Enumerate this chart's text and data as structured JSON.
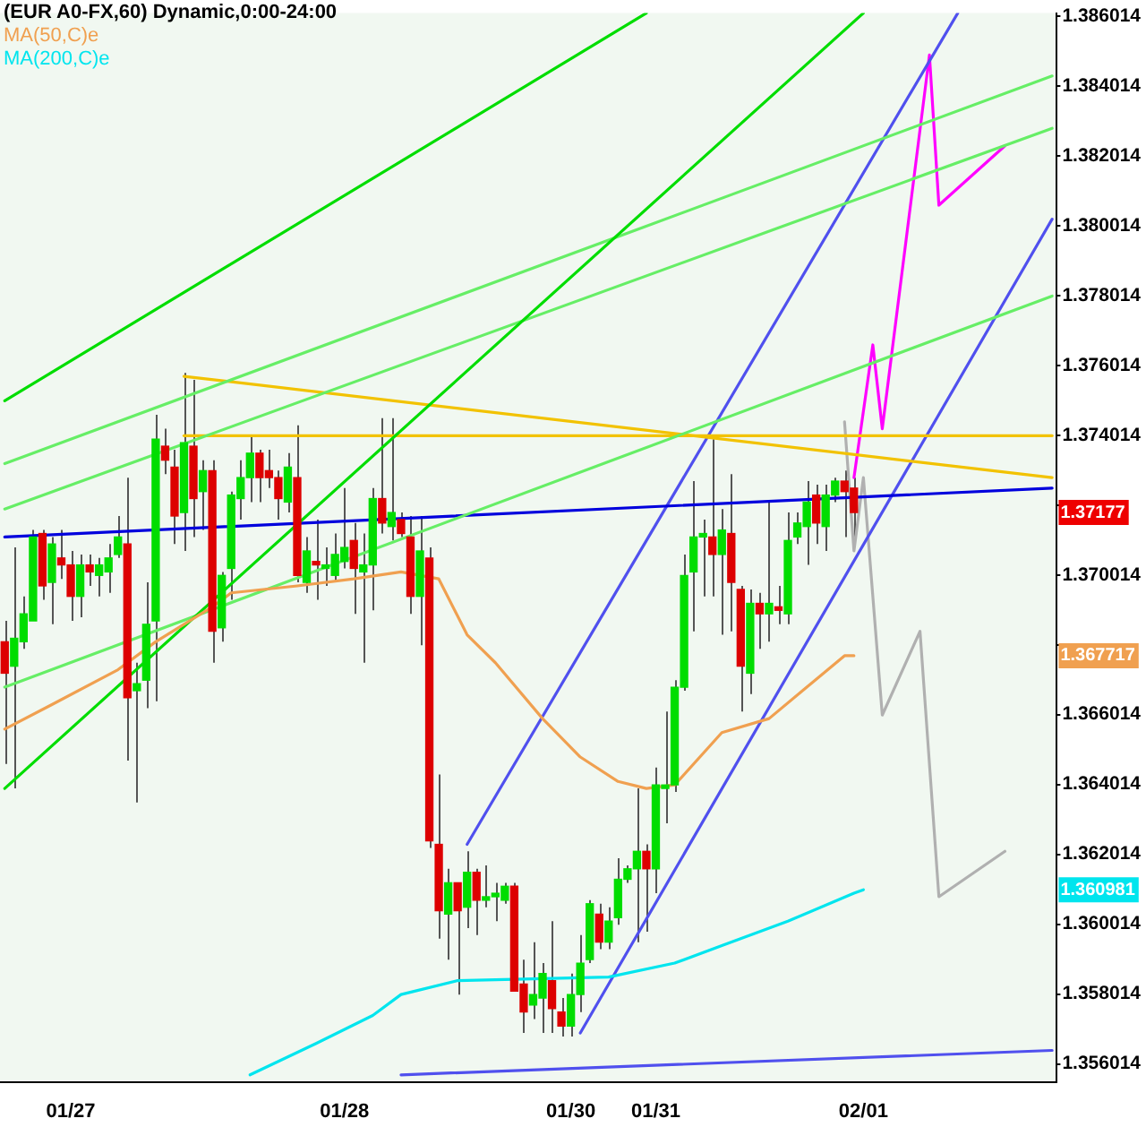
{
  "chart_data": {
    "type": "candlestick",
    "title": "(EUR A0-FX,60) Dynamic,0:00-24:00",
    "categories": [
      null,
      null,
      null,
      null,
      null,
      null,
      null,
      "01/27",
      null,
      null,
      null,
      null,
      null,
      null,
      null,
      null,
      null,
      null,
      null,
      null,
      null,
      null,
      null,
      null,
      null,
      null,
      null,
      null,
      null,
      null,
      null,
      null,
      null,
      null,
      null,
      null,
      "01/28",
      null,
      null,
      null,
      null,
      null,
      null,
      null,
      null,
      null,
      null,
      null,
      null,
      null,
      null,
      null,
      null,
      null,
      null,
      null,
      null,
      null,
      null,
      null,
      "01/30",
      null,
      null,
      null,
      null,
      null,
      null,
      null,
      null,
      "01/31",
      null,
      null,
      null,
      null,
      null,
      null,
      null,
      null,
      null,
      null,
      null,
      null,
      null,
      null,
      null,
      null,
      null,
      null,
      null,
      null,
      null,
      "02/01",
      null,
      null,
      null,
      null,
      null,
      null,
      null,
      null,
      null,
      null,
      null,
      null,
      null,
      null,
      null,
      null,
      null,
      null,
      null,
      null
    ],
    "ohlc": [
      [
        1.3681,
        1.3687,
        1.3646,
        1.3672
      ],
      [
        1.3674,
        1.3708,
        1.3639,
        1.3682
      ],
      [
        1.3681,
        1.3694,
        1.3679,
        1.3689
      ],
      [
        1.3687,
        1.3713,
        1.3687,
        1.3711
      ],
      [
        1.3712,
        1.3713,
        1.3693,
        1.3697
      ],
      [
        1.3698,
        1.3711,
        1.3686,
        1.3709
      ],
      [
        1.3705,
        1.3713,
        1.3699,
        1.3703
      ],
      [
        1.3703,
        1.3707,
        1.3687,
        1.3694
      ],
      [
        1.3694,
        1.3706,
        1.3688,
        1.3703
      ],
      [
        1.3703,
        1.3706,
        1.3697,
        1.3701
      ],
      [
        1.37,
        1.3705,
        1.3694,
        1.3703
      ],
      [
        1.3701,
        1.3709,
        1.3695,
        1.3705
      ],
      [
        1.3706,
        1.3717,
        1.3705,
        1.3711
      ],
      [
        1.3709,
        1.3728,
        1.3647,
        1.3665
      ],
      [
        1.3667,
        1.3675,
        1.3635,
        1.3669
      ],
      [
        1.367,
        1.3698,
        1.3662,
        1.3686
      ],
      [
        1.3687,
        1.3746,
        1.3664,
        1.3739
      ],
      [
        1.3737,
        1.3742,
        1.3729,
        1.3733
      ],
      [
        1.3731,
        1.3736,
        1.3709,
        1.3717
      ],
      [
        1.3718,
        1.3758,
        1.3707,
        1.3738
      ],
      [
        1.3737,
        1.3756,
        1.3711,
        1.3722
      ],
      [
        1.3724,
        1.3733,
        1.3713,
        1.373
      ],
      [
        1.373,
        1.3733,
        1.3675,
        1.3684
      ],
      [
        1.3685,
        1.3701,
        1.3681,
        1.37
      ],
      [
        1.3702,
        1.3724,
        1.3693,
        1.3723
      ],
      [
        1.3722,
        1.3733,
        1.3716,
        1.3728
      ],
      [
        1.3728,
        1.374,
        1.3721,
        1.3735
      ],
      [
        1.3735,
        1.3736,
        1.3721,
        1.3728
      ],
      [
        1.373,
        1.3736,
        1.3725,
        1.3728
      ],
      [
        1.3728,
        1.373,
        1.3716,
        1.3722
      ],
      [
        1.3721,
        1.3735,
        1.3718,
        1.3731
      ],
      [
        1.3728,
        1.3743,
        1.3698,
        1.37
      ],
      [
        1.3698,
        1.3711,
        1.3695,
        1.3707
      ],
      [
        1.3704,
        1.3716,
        1.3693,
        1.3703
      ],
      [
        1.3702,
        1.3708,
        1.3697,
        1.3703
      ],
      [
        1.37,
        1.3712,
        1.3698,
        1.3706
      ],
      [
        1.3704,
        1.3725,
        1.3702,
        1.3708
      ],
      [
        1.371,
        1.3715,
        1.3689,
        1.3702
      ],
      [
        1.3701,
        1.3712,
        1.3675,
        1.3703
      ],
      [
        1.3703,
        1.3725,
        1.369,
        1.3722
      ],
      [
        1.3722,
        1.3745,
        1.3712,
        1.3715
      ],
      [
        1.3714,
        1.3745,
        1.371,
        1.3718
      ],
      [
        1.3716,
        1.3718,
        1.3711,
        1.3712
      ],
      [
        1.3711,
        1.3717,
        1.3689,
        1.3694
      ],
      [
        1.3694,
        1.3717,
        1.368,
        1.3707
      ],
      [
        1.3705,
        1.3708,
        1.3622,
        1.3624
      ],
      [
        1.3623,
        1.3643,
        1.3596,
        1.3604
      ],
      [
        1.3603,
        1.3616,
        1.359,
        1.3612
      ],
      [
        1.3612,
        1.3612,
        1.358,
        1.3604
      ],
      [
        1.3605,
        1.3621,
        1.3599,
        1.3615
      ],
      [
        1.3615,
        1.3616,
        1.3597,
        1.3607
      ],
      [
        1.3607,
        1.3617,
        1.3605,
        1.3608
      ],
      [
        1.3608,
        1.3612,
        1.3601,
        1.3609
      ],
      [
        1.3607,
        1.3612,
        1.3606,
        1.3611
      ],
      [
        1.3611,
        1.3612,
        1.3581,
        1.3581
      ],
      [
        1.3583,
        1.359,
        1.3569,
        1.3575
      ],
      [
        1.3577,
        1.3595,
        1.3573,
        1.358
      ],
      [
        1.3579,
        1.3589,
        1.3569,
        1.3586
      ],
      [
        1.3584,
        1.3601,
        1.3569,
        1.3576
      ],
      [
        1.3575,
        1.3579,
        1.3568,
        1.3571
      ],
      [
        1.3571,
        1.3586,
        1.3568,
        1.358
      ],
      [
        1.358,
        1.3597,
        1.3575,
        1.3589
      ],
      [
        1.359,
        1.3607,
        1.3589,
        1.3606
      ],
      [
        1.3603,
        1.3606,
        1.3593,
        1.3595
      ],
      [
        1.3595,
        1.3605,
        1.3593,
        1.3601
      ],
      [
        1.3602,
        1.3619,
        1.36,
        1.3613
      ],
      [
        1.3613,
        1.3617,
        1.3612,
        1.3616
      ],
      [
        1.3616,
        1.3639,
        1.3595,
        1.3621
      ],
      [
        1.3621,
        1.3623,
        1.3598,
        1.3616
      ],
      [
        1.3616,
        1.3645,
        1.3609,
        1.364
      ],
      [
        1.3639,
        1.3661,
        1.3629,
        1.364
      ],
      [
        1.364,
        1.367,
        1.3638,
        1.3668
      ],
      [
        1.3668,
        1.3706,
        1.3667,
        1.37
      ],
      [
        1.3701,
        1.3727,
        1.3684,
        1.3711
      ],
      [
        1.3711,
        1.3716,
        1.3694,
        1.3712
      ],
      [
        1.3711,
        1.3739,
        1.3694,
        1.3706
      ],
      [
        1.3706,
        1.3719,
        1.3683,
        1.3713
      ],
      [
        1.3712,
        1.3729,
        1.3684,
        1.3698
      ],
      [
        1.3696,
        1.3697,
        1.3661,
        1.3674
      ],
      [
        1.3672,
        1.3696,
        1.3666,
        1.3692
      ],
      [
        1.3692,
        1.3695,
        1.3679,
        1.3689
      ],
      [
        1.3689,
        1.3721,
        1.3681,
        1.3692
      ],
      [
        1.3691,
        1.3697,
        1.3686,
        1.369
      ],
      [
        1.3689,
        1.3718,
        1.3686,
        1.371
      ],
      [
        1.3711,
        1.3718,
        1.3709,
        1.3715
      ],
      [
        1.3714,
        1.3727,
        1.3703,
        1.3721
      ],
      [
        1.3723,
        1.3726,
        1.3709,
        1.3715
      ],
      [
        1.3714,
        1.3726,
        1.3707,
        1.3723
      ],
      [
        1.3723,
        1.3728,
        1.3721,
        1.3727
      ],
      [
        1.3727,
        1.373,
        1.3711,
        1.3724
      ],
      [
        1.3725,
        1.3728,
        1.3711,
        1.3718
      ],
      null,
      null,
      null,
      null,
      null,
      null,
      null,
      null,
      null,
      null,
      null,
      null,
      null,
      null,
      null,
      null,
      null,
      null,
      null,
      null,
      null
    ],
    "series": [
      {
        "name": "MA(50,C)e",
        "color": "#f0a050",
        "type": "line",
        "values": [
          1.3656,
          null,
          null,
          null,
          null,
          1.3663,
          null,
          null,
          null,
          null,
          null,
          null,
          1.3673,
          null,
          null,
          null,
          1.3681,
          null,
          null,
          null,
          null,
          null,
          1.3691,
          null,
          1.3695,
          null,
          null,
          null,
          null,
          null,
          null,
          1.3697,
          null,
          null,
          null,
          null,
          null,
          1.3699,
          null,
          null,
          null,
          null,
          1.3701,
          null,
          null,
          null,
          1.3699,
          null,
          null,
          1.3683,
          null,
          null,
          1.3675,
          null,
          null,
          null,
          null,
          1.3659,
          null,
          null,
          null,
          1.3648,
          null,
          null,
          null,
          1.3641,
          null,
          null,
          1.3639,
          null,
          null,
          1.364,
          null,
          null,
          null,
          null,
          1.3655,
          null,
          null,
          null,
          null,
          1.3659,
          null,
          null,
          null,
          1.3668,
          null,
          null,
          null,
          1.3677,
          1.3677,
          null,
          null,
          null,
          null,
          null,
          null,
          null,
          null,
          null,
          null,
          null,
          null,
          null,
          null,
          null,
          null,
          null,
          null,
          null,
          null,
          null
        ]
      },
      {
        "name": "MA(200,C)e",
        "color": "#00e5ee",
        "type": "line",
        "values": [
          null,
          null,
          null,
          null,
          null,
          null,
          null,
          null,
          null,
          null,
          null,
          null,
          null,
          null,
          null,
          null,
          null,
          null,
          null,
          null,
          null,
          null,
          null,
          null,
          null,
          null,
          1.3557,
          null,
          null,
          null,
          null,
          null,
          null,
          1.3566,
          null,
          null,
          null,
          null,
          null,
          1.3574,
          null,
          null,
          1.358,
          null,
          null,
          null,
          null,
          null,
          1.3584,
          null,
          null,
          null,
          null,
          null,
          null,
          null,
          null,
          null,
          null,
          null,
          null,
          null,
          null,
          null,
          1.3585,
          null,
          null,
          null,
          null,
          null,
          null,
          1.3589,
          null,
          null,
          null,
          null,
          1.3594,
          null,
          null,
          null,
          null,
          null,
          null,
          1.3601,
          null,
          null,
          null,
          null,
          null,
          null,
          1.3609,
          1.361,
          null,
          null,
          null,
          null,
          null,
          null,
          null,
          null,
          null,
          null,
          null,
          null,
          null,
          null,
          null,
          null,
          null,
          null,
          null,
          null
        ]
      },
      {
        "color": "#00dd00",
        "type": "line",
        "values": [
          1.375,
          null,
          null,
          null,
          null,
          null,
          null,
          null,
          null,
          null,
          null,
          null,
          null,
          null,
          null,
          null,
          null,
          null,
          null,
          null,
          null,
          null,
          null,
          null,
          null,
          null,
          null,
          null,
          null,
          null,
          null,
          null,
          null,
          null,
          null,
          null,
          null,
          null,
          null,
          null,
          null,
          null,
          null,
          null,
          null,
          null,
          null,
          null,
          null,
          null,
          null,
          null,
          null,
          null,
          null,
          null,
          null,
          null,
          null,
          null,
          null,
          null,
          null,
          null,
          null,
          null,
          null,
          null,
          1.3861,
          null,
          null,
          null,
          null,
          null,
          null,
          null,
          null,
          null,
          null,
          null,
          null,
          null,
          null,
          null,
          null,
          null,
          null,
          null,
          null,
          null,
          null,
          null,
          null,
          null,
          null,
          null,
          null,
          null,
          null,
          null,
          null,
          null,
          null,
          null,
          null,
          null,
          null,
          null,
          null,
          null,
          null,
          null
        ]
      },
      {
        "color": "#00dd00",
        "type": "line",
        "values": [
          1.3639,
          null,
          null,
          null,
          null,
          null,
          null,
          null,
          null,
          null,
          null,
          null,
          null,
          null,
          null,
          null,
          null,
          null,
          null,
          null,
          null,
          null,
          null,
          null,
          null,
          null,
          null,
          null,
          null,
          null,
          null,
          null,
          null,
          null,
          null,
          null,
          null,
          null,
          null,
          null,
          null,
          null,
          null,
          null,
          null,
          null,
          null,
          null,
          null,
          null,
          null,
          null,
          null,
          null,
          null,
          null,
          null,
          null,
          null,
          null,
          null,
          null,
          null,
          null,
          null,
          null,
          null,
          null,
          null,
          null,
          null,
          null,
          null,
          null,
          null,
          null,
          null,
          null,
          null,
          null,
          null,
          null,
          null,
          null,
          null,
          null,
          null,
          null,
          null,
          null,
          null,
          1.3861,
          null,
          null,
          null,
          null,
          null,
          null,
          null,
          null,
          null,
          null,
          null,
          null,
          null,
          null,
          null,
          null,
          null,
          null,
          null,
          null
        ]
      },
      {
        "color": "#66ee66",
        "type": "line",
        "values": [
          1.3732,
          null,
          null,
          null,
          null,
          null,
          null,
          null,
          null,
          null,
          null,
          null,
          null,
          null,
          null,
          null,
          null,
          null,
          null,
          null,
          null,
          null,
          null,
          null,
          null,
          null,
          null,
          null,
          null,
          null,
          null,
          null,
          null,
          null,
          null,
          null,
          null,
          null,
          null,
          null,
          null,
          null,
          null,
          null,
          null,
          null,
          null,
          null,
          null,
          null,
          null,
          null,
          null,
          null,
          null,
          null,
          null,
          null,
          null,
          null,
          null,
          null,
          null,
          null,
          null,
          null,
          null,
          null,
          null,
          null,
          null,
          null,
          null,
          null,
          null,
          null,
          null,
          null,
          null,
          null,
          null,
          null,
          null,
          null,
          null,
          null,
          null,
          null,
          null,
          null,
          null,
          null,
          null,
          null,
          null,
          null,
          null,
          null,
          null,
          null,
          null,
          null,
          null,
          null,
          null,
          null,
          null,
          null,
          null,
          null,
          null,
          1.3843
        ]
      },
      {
        "color": "#66ee66",
        "type": "line",
        "values": [
          1.3719,
          null,
          null,
          null,
          null,
          null,
          null,
          null,
          null,
          null,
          null,
          null,
          null,
          null,
          null,
          null,
          null,
          null,
          null,
          null,
          null,
          null,
          null,
          null,
          null,
          null,
          null,
          null,
          null,
          null,
          null,
          null,
          null,
          null,
          null,
          null,
          null,
          null,
          null,
          null,
          null,
          null,
          null,
          null,
          null,
          null,
          null,
          null,
          null,
          null,
          null,
          null,
          null,
          null,
          null,
          null,
          null,
          null,
          null,
          null,
          null,
          null,
          null,
          null,
          null,
          null,
          null,
          null,
          null,
          null,
          null,
          null,
          null,
          null,
          null,
          null,
          null,
          null,
          null,
          null,
          null,
          null,
          null,
          null,
          null,
          null,
          null,
          null,
          null,
          null,
          null,
          null,
          null,
          null,
          null,
          null,
          null,
          null,
          null,
          null,
          null,
          null,
          null,
          null,
          null,
          null,
          null,
          null,
          null,
          null,
          null,
          1.3828
        ]
      },
      {
        "color": "#66ee66",
        "type": "line",
        "values": [
          1.3668,
          null,
          null,
          null,
          null,
          null,
          null,
          null,
          null,
          null,
          null,
          null,
          null,
          null,
          null,
          null,
          null,
          null,
          null,
          null,
          null,
          null,
          null,
          null,
          null,
          null,
          null,
          null,
          null,
          null,
          null,
          null,
          null,
          null,
          null,
          null,
          null,
          null,
          null,
          null,
          null,
          null,
          null,
          null,
          null,
          null,
          null,
          null,
          null,
          null,
          null,
          null,
          null,
          null,
          null,
          null,
          null,
          null,
          null,
          null,
          null,
          null,
          null,
          null,
          null,
          null,
          null,
          null,
          null,
          null,
          null,
          null,
          null,
          null,
          null,
          null,
          null,
          null,
          null,
          null,
          null,
          null,
          null,
          null,
          null,
          null,
          null,
          null,
          null,
          null,
          null,
          null,
          null,
          null,
          null,
          null,
          null,
          null,
          null,
          null,
          null,
          null,
          null,
          null,
          null,
          null,
          null,
          null,
          null,
          null,
          null,
          1.378
        ]
      },
      {
        "color": "#f2c200",
        "type": "line",
        "values": [
          null,
          null,
          null,
          null,
          null,
          null,
          null,
          null,
          null,
          null,
          null,
          null,
          null,
          null,
          null,
          null,
          null,
          null,
          null,
          1.374,
          null,
          null,
          null,
          null,
          null,
          null,
          null,
          null,
          null,
          null,
          null,
          null,
          null,
          null,
          null,
          null,
          null,
          null,
          null,
          null,
          null,
          null,
          null,
          null,
          null,
          null,
          null,
          null,
          null,
          null,
          null,
          null,
          null,
          null,
          null,
          null,
          null,
          null,
          null,
          null,
          null,
          null,
          null,
          null,
          null,
          null,
          null,
          null,
          null,
          null,
          null,
          null,
          null,
          null,
          null,
          null,
          null,
          null,
          null,
          null,
          null,
          null,
          null,
          null,
          null,
          null,
          null,
          null,
          null,
          null,
          null,
          null,
          null,
          null,
          null,
          null,
          null,
          null,
          null,
          null,
          null,
          null,
          null,
          null,
          null,
          null,
          null,
          null,
          null,
          null,
          null,
          1.374
        ]
      },
      {
        "color": "#f2c200",
        "type": "line",
        "values": [
          null,
          null,
          null,
          null,
          null,
          null,
          null,
          null,
          null,
          null,
          null,
          null,
          null,
          null,
          null,
          null,
          null,
          null,
          null,
          1.3757,
          null,
          null,
          null,
          null,
          null,
          null,
          null,
          null,
          null,
          null,
          null,
          null,
          null,
          null,
          null,
          null,
          null,
          null,
          null,
          null,
          null,
          null,
          null,
          null,
          null,
          null,
          null,
          null,
          null,
          null,
          null,
          null,
          null,
          null,
          null,
          null,
          null,
          null,
          null,
          null,
          null,
          null,
          null,
          null,
          null,
          null,
          null,
          null,
          null,
          null,
          null,
          null,
          null,
          null,
          null,
          null,
          null,
          null,
          null,
          null,
          null,
          null,
          null,
          null,
          null,
          null,
          null,
          null,
          null,
          null,
          null,
          null,
          null,
          null,
          null,
          null,
          null,
          null,
          null,
          null,
          null,
          null,
          null,
          null,
          null,
          null,
          null,
          null,
          null,
          null,
          null,
          1.3728
        ]
      },
      {
        "color": "#0000dd",
        "type": "line",
        "values": [
          1.3711,
          null,
          null,
          null,
          null,
          null,
          null,
          null,
          null,
          null,
          null,
          null,
          null,
          null,
          null,
          null,
          null,
          null,
          null,
          null,
          null,
          null,
          null,
          null,
          null,
          null,
          null,
          null,
          null,
          null,
          null,
          null,
          null,
          null,
          null,
          null,
          null,
          null,
          null,
          null,
          null,
          null,
          null,
          null,
          null,
          null,
          null,
          null,
          null,
          null,
          null,
          null,
          null,
          null,
          null,
          null,
          null,
          null,
          null,
          null,
          null,
          null,
          null,
          null,
          null,
          null,
          null,
          null,
          null,
          null,
          null,
          null,
          null,
          null,
          null,
          null,
          null,
          null,
          null,
          null,
          null,
          null,
          null,
          null,
          null,
          null,
          null,
          null,
          null,
          null,
          null,
          null,
          null,
          null,
          null,
          null,
          null,
          null,
          null,
          null,
          null,
          null,
          null,
          null,
          null,
          null,
          null,
          null,
          null,
          null,
          null,
          1.3725
        ]
      },
      {
        "color": "#5050ee",
        "type": "line",
        "values": [
          null,
          null,
          null,
          null,
          null,
          null,
          null,
          null,
          null,
          null,
          null,
          null,
          null,
          null,
          null,
          null,
          null,
          null,
          null,
          null,
          null,
          null,
          null,
          null,
          null,
          null,
          null,
          null,
          null,
          null,
          null,
          null,
          null,
          null,
          null,
          null,
          null,
          null,
          null,
          null,
          null,
          null,
          null,
          null,
          null,
          null,
          null,
          null,
          null,
          1.3623,
          null,
          null,
          null,
          null,
          null,
          null,
          null,
          null,
          null,
          null,
          null,
          null,
          null,
          null,
          null,
          null,
          null,
          null,
          null,
          null,
          null,
          null,
          null,
          null,
          null,
          null,
          null,
          null,
          null,
          null,
          null,
          null,
          null,
          null,
          null,
          null,
          null,
          null,
          null,
          null,
          null,
          null,
          null,
          null,
          null,
          null,
          null,
          null,
          null,
          null,
          null,
          1.3861,
          null,
          null,
          null,
          null,
          null,
          null,
          null,
          null,
          null,
          null
        ]
      },
      {
        "color": "#5050ee",
        "type": "line",
        "values": [
          null,
          null,
          null,
          null,
          null,
          null,
          null,
          null,
          null,
          null,
          null,
          null,
          null,
          null,
          null,
          null,
          null,
          null,
          null,
          null,
          null,
          null,
          null,
          null,
          null,
          null,
          null,
          null,
          null,
          null,
          null,
          null,
          null,
          null,
          null,
          null,
          null,
          null,
          null,
          null,
          null,
          null,
          null,
          null,
          null,
          null,
          null,
          null,
          null,
          null,
          null,
          null,
          null,
          null,
          null,
          null,
          null,
          null,
          null,
          null,
          null,
          1.3569,
          null,
          null,
          null,
          null,
          null,
          null,
          null,
          null,
          null,
          null,
          null,
          null,
          null,
          null,
          null,
          null,
          null,
          null,
          null,
          null,
          null,
          null,
          null,
          null,
          null,
          null,
          null,
          null,
          null,
          null,
          null,
          null,
          null,
          null,
          null,
          null,
          null,
          null,
          null,
          null,
          null,
          null,
          null,
          null,
          null,
          null,
          null,
          null,
          null,
          1.3802
        ]
      },
      {
        "color": "#5050ee",
        "type": "line",
        "values": [
          null,
          null,
          null,
          null,
          null,
          null,
          null,
          null,
          null,
          null,
          null,
          null,
          null,
          null,
          null,
          null,
          null,
          null,
          null,
          null,
          null,
          null,
          null,
          null,
          null,
          null,
          null,
          null,
          null,
          null,
          null,
          null,
          null,
          null,
          null,
          null,
          null,
          null,
          null,
          null,
          null,
          null,
          1.3557,
          null,
          null,
          null,
          null,
          null,
          null,
          null,
          null,
          null,
          null,
          null,
          null,
          null,
          null,
          null,
          null,
          null,
          null,
          null,
          null,
          null,
          null,
          null,
          null,
          null,
          null,
          null,
          null,
          null,
          null,
          null,
          null,
          null,
          null,
          null,
          null,
          null,
          null,
          null,
          null,
          null,
          null,
          null,
          null,
          null,
          null,
          null,
          null,
          null,
          null,
          null,
          null,
          null,
          null,
          null,
          null,
          null,
          null,
          null,
          null,
          null,
          null,
          null,
          null,
          null,
          null,
          null,
          null,
          1.3564
        ]
      },
      {
        "color": "#ff00ff",
        "type": "line",
        "values": [
          null,
          null,
          null,
          null,
          null,
          null,
          null,
          null,
          null,
          null,
          null,
          null,
          null,
          null,
          null,
          null,
          null,
          null,
          null,
          null,
          null,
          null,
          null,
          null,
          null,
          null,
          null,
          null,
          null,
          null,
          null,
          null,
          null,
          null,
          null,
          null,
          null,
          null,
          null,
          null,
          null,
          null,
          null,
          null,
          null,
          null,
          null,
          null,
          null,
          null,
          null,
          null,
          null,
          null,
          null,
          null,
          null,
          null,
          null,
          null,
          null,
          null,
          null,
          null,
          null,
          null,
          null,
          null,
          null,
          null,
          null,
          null,
          null,
          null,
          null,
          null,
          null,
          null,
          null,
          null,
          null,
          null,
          null,
          null,
          null,
          null,
          null,
          null,
          null,
          null,
          1.3728,
          null,
          1.3766,
          1.3742,
          null,
          null,
          null,
          null,
          1.3849,
          1.3806,
          null,
          null,
          null,
          null,
          null,
          null,
          1.3823,
          null,
          null,
          null,
          null,
          null
        ]
      },
      {
        "color": "#b0b0b0",
        "type": "line",
        "values": [
          null,
          null,
          null,
          null,
          null,
          null,
          null,
          null,
          null,
          null,
          null,
          null,
          null,
          null,
          null,
          null,
          null,
          null,
          null,
          null,
          null,
          null,
          null,
          null,
          null,
          null,
          null,
          null,
          null,
          null,
          null,
          null,
          null,
          null,
          null,
          null,
          null,
          null,
          null,
          null,
          null,
          null,
          null,
          null,
          null,
          null,
          null,
          null,
          null,
          null,
          null,
          null,
          null,
          null,
          null,
          null,
          null,
          null,
          null,
          null,
          null,
          null,
          null,
          null,
          null,
          null,
          null,
          null,
          null,
          null,
          null,
          null,
          null,
          null,
          null,
          null,
          null,
          null,
          null,
          null,
          null,
          null,
          null,
          null,
          null,
          null,
          null,
          null,
          null,
          1.3744,
          1.3707,
          1.3728,
          null,
          1.366,
          null,
          null,
          null,
          1.3684,
          null,
          1.3608,
          null,
          null,
          null,
          null,
          null,
          null,
          1.3621,
          null,
          null,
          null,
          null,
          null
        ]
      }
    ],
    "annotations": [
      "1.37177",
      "1.367717",
      "1.360981"
    ],
    "ylim": [
      1.3555,
      1.3861
    ],
    "yticks": [
      1.356014,
      1.358014,
      1.360014,
      1.362014,
      1.364014,
      1.366014,
      {
        "value": 1.368014,
        "label": null
      },
      1.370014,
      {
        "value": 1.372014,
        "label": null
      },
      1.374014,
      1.376014,
      1.378014,
      1.380014,
      1.382014,
      1.384014,
      1.386014
    ],
    "marker": "none",
    "grid": false,
    "legend": "top left"
  }
}
